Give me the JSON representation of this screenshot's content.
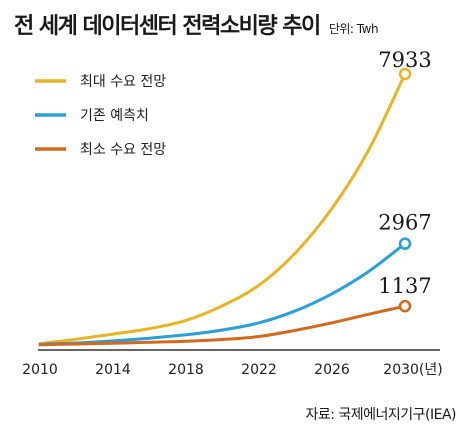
{
  "header": {
    "title": "전 세계 데이터센터 전력소비량 추이",
    "unit": "단위: Twh"
  },
  "source": "자료: 국제에너지기구(IEA)",
  "chart_data": {
    "type": "line",
    "title": "전 세계 데이터센터 전력소비량 추이",
    "ylabel": "단위: Twh",
    "x_ticks": [
      "2010",
      "2014",
      "2018",
      "2022",
      "2026",
      "2030(년)"
    ],
    "grid": false,
    "legend_position": "top-left",
    "series": [
      {
        "name": "최대 수요 전망",
        "color": "#e8b325",
        "x": [
          2010,
          2012,
          2014,
          2016,
          2018,
          2020,
          2022,
          2024,
          2026,
          2028,
          2030
        ],
        "values": [
          40,
          170,
          320,
          480,
          720,
          1150,
          1750,
          2700,
          4000,
          5700,
          7933
        ],
        "end_label": "7933"
      },
      {
        "name": "기존 예측치",
        "color": "#2b9fd9",
        "x": [
          2010,
          2012,
          2014,
          2016,
          2018,
          2020,
          2022,
          2024,
          2026,
          2028,
          2030
        ],
        "values": [
          20,
          60,
          120,
          200,
          300,
          440,
          650,
          1000,
          1500,
          2150,
          2967
        ],
        "end_label": "2967"
      },
      {
        "name": "최소 수요 전망",
        "color": "#d2691e",
        "x": [
          2010,
          2012,
          2014,
          2016,
          2018,
          2020,
          2022,
          2024,
          2026,
          2028,
          2030
        ],
        "values": [
          10,
          30,
          50,
          80,
          110,
          160,
          250,
          430,
          650,
          900,
          1137
        ],
        "end_label": "1137"
      }
    ]
  }
}
